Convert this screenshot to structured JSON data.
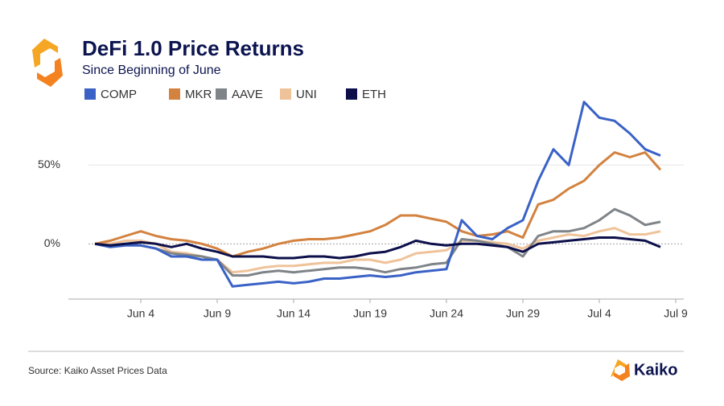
{
  "chart_data": {
    "type": "line",
    "title": "DeFi 1.0 Price Returns",
    "subtitle": "Since Beginning of June",
    "x": [
      "Jun 1",
      "Jun 2",
      "Jun 3",
      "Jun 4",
      "Jun 5",
      "Jun 6",
      "Jun 7",
      "Jun 8",
      "Jun 9",
      "Jun 10",
      "Jun 11",
      "Jun 12",
      "Jun 13",
      "Jun 14",
      "Jun 15",
      "Jun 16",
      "Jun 17",
      "Jun 18",
      "Jun 19",
      "Jun 20",
      "Jun 21",
      "Jun 22",
      "Jun 23",
      "Jun 24",
      "Jun 25",
      "Jun 26",
      "Jun 27",
      "Jun 28",
      "Jun 29",
      "Jun 30",
      "Jul 1",
      "Jul 2",
      "Jul 3",
      "Jul 4",
      "Jul 5",
      "Jul 6",
      "Jul 7",
      "Jul 8"
    ],
    "series": [
      {
        "name": "COMP",
        "color": "#3a62c6",
        "values": [
          0,
          -2,
          -1,
          -1,
          -3,
          -8,
          -8,
          -10,
          -10,
          -27,
          -26,
          -25,
          -24,
          -25,
          -24,
          -22,
          -22,
          -21,
          -20,
          -21,
          -20,
          -18,
          -17,
          -16,
          15,
          5,
          3,
          10,
          15,
          40,
          60,
          50,
          90,
          80,
          78,
          70,
          60,
          56
        ]
      },
      {
        "name": "MKR",
        "color": "#d3823f",
        "values": [
          0,
          2,
          5,
          8,
          5,
          3,
          2,
          0,
          -3,
          -8,
          -5,
          -3,
          0,
          2,
          3,
          3,
          4,
          6,
          8,
          12,
          18,
          18,
          16,
          14,
          8,
          5,
          6,
          8,
          4,
          25,
          28,
          35,
          40,
          50,
          58,
          55,
          58,
          47
        ]
      },
      {
        "name": "AAVE",
        "color": "#7f8488",
        "values": [
          0,
          -1,
          0,
          -1,
          -3,
          -6,
          -7,
          -8,
          -10,
          -20,
          -20,
          -18,
          -17,
          -18,
          -17,
          -16,
          -15,
          -15,
          -16,
          -18,
          -16,
          -15,
          -13,
          -12,
          3,
          2,
          0,
          -2,
          -8,
          5,
          8,
          8,
          10,
          15,
          22,
          18,
          12,
          14
        ]
      },
      {
        "name": "UNI",
        "color": "#efc39a",
        "values": [
          0,
          0,
          2,
          2,
          0,
          -5,
          -6,
          -8,
          -10,
          -18,
          -17,
          -15,
          -14,
          -14,
          -13,
          -12,
          -12,
          -10,
          -10,
          -12,
          -10,
          -6,
          -5,
          -4,
          2,
          2,
          1,
          0,
          -3,
          2,
          4,
          6,
          5,
          8,
          10,
          6,
          6,
          8
        ]
      },
      {
        "name": "ETH",
        "color": "#0c0f4a",
        "values": [
          0,
          -1,
          0,
          1,
          0,
          -2,
          0,
          -3,
          -5,
          -8,
          -8,
          -8,
          -9,
          -9,
          -8,
          -8,
          -9,
          -8,
          -6,
          -5,
          -2,
          2,
          0,
          -1,
          0,
          0,
          -1,
          -2,
          -5,
          0,
          1,
          2,
          3,
          4,
          4,
          3,
          2,
          -2
        ]
      }
    ],
    "xticks": [
      "Jun 4",
      "Jun 9",
      "Jun 14",
      "Jun 19",
      "Jun 24",
      "Jun 29",
      "Jul 4",
      "Jul 9"
    ],
    "ylim": [
      -35,
      95
    ],
    "yticks": [
      {
        "value": 0,
        "label": "0%"
      },
      {
        "value": 50,
        "label": "50%"
      }
    ],
    "grid": true,
    "source": "Source: Kaiko Asset Prices Data"
  },
  "brand": "Kaiko"
}
